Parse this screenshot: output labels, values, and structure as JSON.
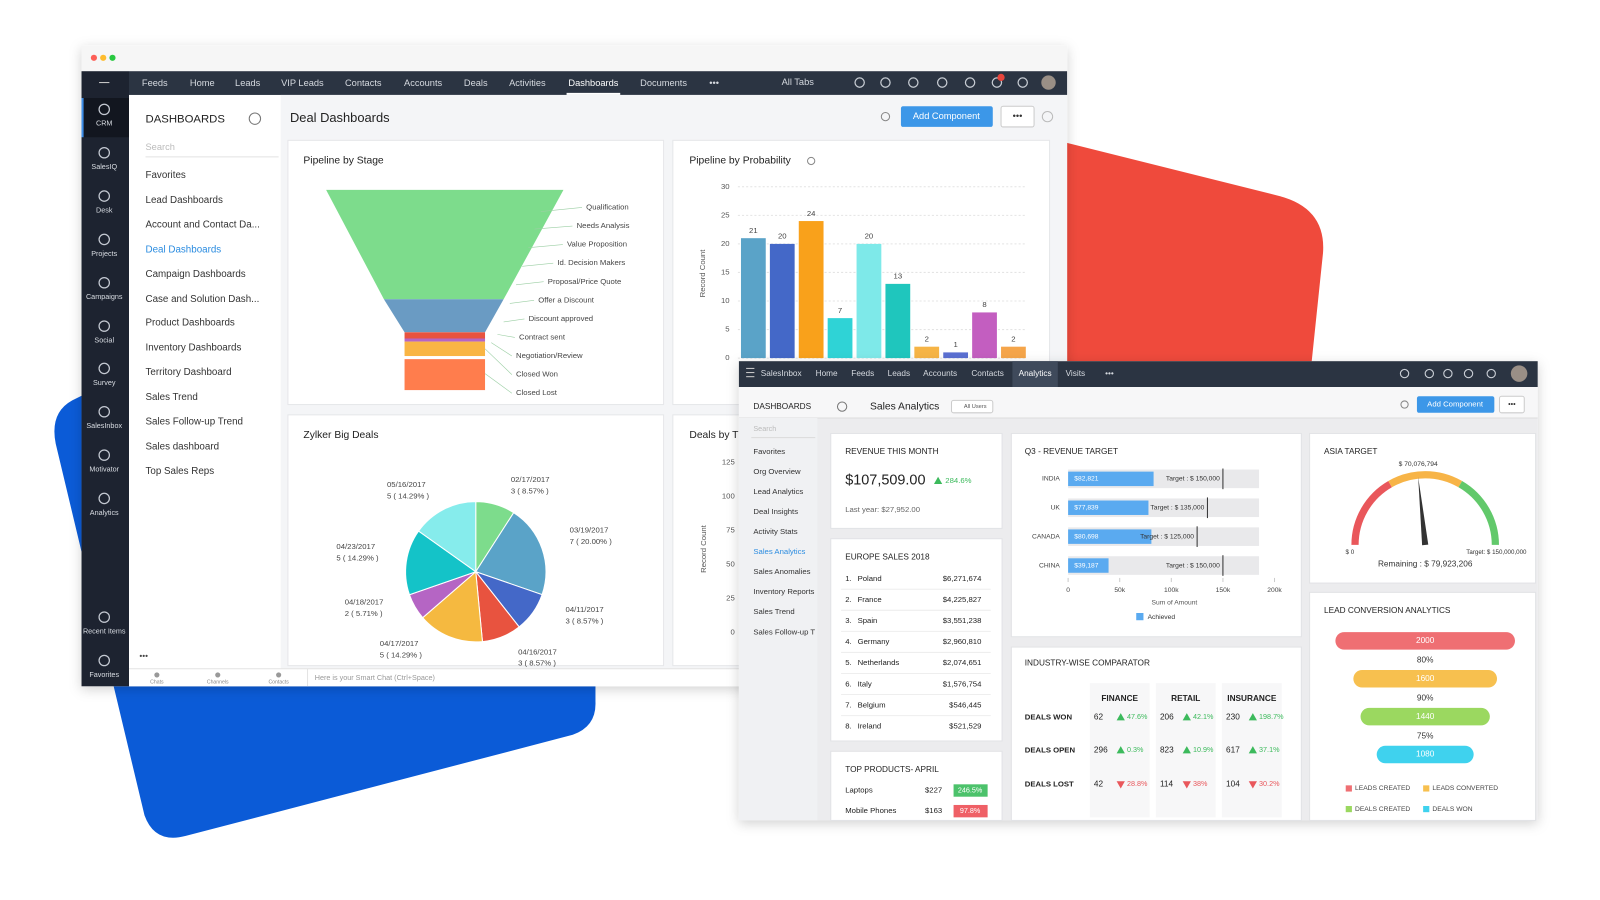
{
  "back_window": {
    "nav": [
      "Feeds",
      "Home",
      "Leads",
      "VIP Leads",
      "Contacts",
      "Accounts",
      "Deals",
      "Activities",
      "Dashboards",
      "Documents",
      "•••"
    ],
    "nav_selected": 8,
    "all_tabs": "All Tabs",
    "apps": [
      "CRM",
      "SalesIQ",
      "Desk",
      "Projects",
      "Campaigns",
      "Social",
      "Survey",
      "SalesInbox",
      "Motivator",
      "Analytics"
    ],
    "bottom_apps": [
      "Recent Items",
      "Favorites"
    ],
    "list_title": "DASHBOARDS",
    "search": "Search",
    "dashboards": [
      "Favorites",
      "Lead Dashboards",
      "Account and Contact Da...",
      "Deal Dashboards",
      "Campaign Dashboards",
      "Case and Solution Dash...",
      "Product Dashboards",
      "Inventory Dashboards",
      "Territory Dashboard",
      "Sales Trend",
      "Sales Follow-up Trend",
      "Sales dashboard",
      "Top Sales Reps"
    ],
    "selected": 3,
    "title": "Deal Dashboards",
    "add_button": "Add Component",
    "more": "•••",
    "pipeline_stage": {
      "title": "Pipeline by Stage",
      "stages": [
        "Qualification",
        "Needs Analysis",
        "Value Proposition",
        "Id. Decision Makers",
        "Proposal/Price Quote",
        "Offer a Discount",
        "Discount approved",
        "Contract sent",
        "Negotiation/Review",
        "Closed Won",
        "Closed Lost"
      ]
    },
    "chat": {
      "tabs": [
        "Chats",
        "Channels",
        "Contacts"
      ],
      "placeholder": "Here is your Smart Chat (Ctrl+Space)"
    }
  },
  "front_window": {
    "nav": [
      "SalesInbox",
      "Home",
      "Feeds",
      "Leads",
      "Accounts",
      "Contacts",
      "Analytics",
      "Visits",
      "•••"
    ],
    "nav_selected": 6,
    "list_title": "DASHBOARDS",
    "title": "Sales Analytics",
    "users": "All Users",
    "add_button": "Add Component",
    "more": "•••",
    "search": "Search",
    "dashboards": [
      "Favorites",
      "Org Overview",
      "Lead Analytics",
      "Deal Insights",
      "Activity Stats",
      "Sales Analytics",
      "Sales Anomalies",
      "Inventory Reports",
      "Sales Trend",
      "Sales Follow-up T"
    ],
    "selected": 5,
    "revenue": {
      "title": "REVENUE THIS MONTH",
      "amount": "$107,509.00",
      "change": "284.6%",
      "last_year": "Last year: $27,952.00"
    },
    "europe": {
      "title": "EUROPE SALES 2018",
      "rows": [
        [
          "1.",
          "Poland",
          "$6,271,674"
        ],
        [
          "2.",
          "France",
          "$4,225,827"
        ],
        [
          "3.",
          "Spain",
          "$3,551,238"
        ],
        [
          "4.",
          "Germany",
          "$2,960,810"
        ],
        [
          "5.",
          "Netherlands",
          "$2,074,651"
        ],
        [
          "6.",
          "Italy",
          "$1,576,754"
        ],
        [
          "7.",
          "Belgium",
          "$546,445"
        ],
        [
          "8.",
          "Ireland",
          "$521,529"
        ]
      ]
    },
    "products": {
      "title": "TOP PRODUCTS- APRIL",
      "rows": [
        {
          "name": "Laptops",
          "amount": "$227",
          "change": "246.5%",
          "up": true
        },
        {
          "name": "Mobile Phones",
          "amount": "$163",
          "change": "97.8%",
          "up": false
        }
      ]
    },
    "industry": {
      "title": "INDUSTRY-WISE COMPARATOR",
      "columns": [
        "FINANCE",
        "RETAIL",
        "INSURANCE"
      ],
      "rows": [
        {
          "label": "DEALS WON",
          "cells": [
            {
              "value": "62",
              "change": "47.6%",
              "up": true
            },
            {
              "value": "206",
              "change": "42.1%",
              "up": true
            },
            {
              "value": "230",
              "change": "198.7%",
              "up": true
            }
          ]
        },
        {
          "label": "DEALS OPEN",
          "cells": [
            {
              "value": "296",
              "change": "0.3%",
              "up": true
            },
            {
              "value": "823",
              "change": "10.9%",
              "up": true
            },
            {
              "value": "617",
              "change": "37.1%",
              "up": true
            }
          ]
        },
        {
          "label": "DEALS LOST",
          "cells": [
            {
              "value": "42",
              "change": "28.8%",
              "up": false
            },
            {
              "value": "114",
              "change": "38%",
              "up": false
            },
            {
              "value": "104",
              "change": "30.2%",
              "up": false
            }
          ]
        }
      ]
    }
  },
  "chart_data": [
    {
      "type": "bar",
      "title": "Pipeline by Probability",
      "ylabel": "Record Count",
      "values": [
        21,
        20,
        24,
        7,
        20,
        13,
        2,
        1,
        8,
        2
      ],
      "colors": [
        "#5aa3c8",
        "#4468c8",
        "#f9a11b",
        "#2fd3d6",
        "#7ee9e9",
        "#1fc6bd",
        "#f6b445",
        "#5a6fd1",
        "#c35ec0",
        "#f5a54a"
      ],
      "ylim": [
        0,
        30
      ],
      "yticks": [
        0,
        5,
        10,
        15,
        20,
        25,
        30
      ],
      "grid": true
    },
    {
      "type": "pie",
      "title": "Zylker Big Deals",
      "categories": [
        "02/17/2017",
        "03/19/2017",
        "04/11/2017",
        "04/16/2017",
        "04/17/2017",
        "04/18/2017",
        "04/23/2017",
        "05/16/2017"
      ],
      "values": [
        8.57,
        20,
        8.57,
        8.57,
        14.29,
        5.71,
        14.29,
        14.29
      ],
      "value_labels": [
        "3 ( 8.57% )",
        "7 ( 20.00% )",
        "3 ( 8.57% )",
        "3 ( 8.57% )",
        "5 ( 14.29% )",
        "2 ( 5.71% )",
        "5 ( 14.29% )",
        "5 ( 14.29% )"
      ],
      "colors": [
        "#7ddc8c",
        "#5aa3c8",
        "#4468c8",
        "#e8533f",
        "#f5b940",
        "#b565c4",
        "#14c3c8",
        "#86ecec"
      ]
    },
    {
      "type": "bar",
      "title": "Deals by T",
      "ylabel": "Record Count",
      "ylim": [
        0,
        125
      ],
      "yticks": [
        0,
        25,
        50,
        75,
        100,
        125
      ],
      "grid": true
    },
    {
      "type": "barh",
      "title": "Q3 - REVENUE TARGET",
      "categories": [
        "INDIA",
        "UK",
        "CANADA",
        "CHINA"
      ],
      "series": [
        {
          "name": "Achieved",
          "color": "#5aaaf0",
          "values": [
            82821,
            77839,
            80698,
            39187
          ],
          "value_labels": [
            "$82,821",
            "$77,839",
            "$80,698",
            "$39,187"
          ]
        }
      ],
      "targets": [
        150000,
        135000,
        125000,
        150000
      ],
      "target_labels": [
        "Target : $ 150,000",
        "Target : $ 135,000",
        "Target : $ 125,000",
        "Target : $ 150,000"
      ],
      "xlim": [
        0,
        200000
      ],
      "xticks": [
        0,
        {
          "value": 50000,
          "label": "50k"
        },
        {
          "value": 100000,
          "label": "100k"
        },
        {
          "value": 150000,
          "label": "150k"
        },
        {
          "value": 200000,
          "label": "200k"
        }
      ],
      "xlabel": "Sum of Amount",
      "legend": "bottom"
    },
    {
      "type": "gauge",
      "title": "ASIA TARGET",
      "value": 70076794,
      "value_label": "$ 70,076,794",
      "ylim": [
        0,
        150000000
      ],
      "min_label": "$ 0",
      "max_label": "Target: $ 150,000,000",
      "remaining": "Remaining : $ 79,923,206",
      "colors": [
        "#e9575b",
        "#f7b447",
        "#62c96b"
      ]
    },
    {
      "type": "funnel",
      "title": "LEAD CONVERSION ANALYTICS",
      "categories": [
        "LEADS CREATED",
        "LEADS CONVERTED",
        "DEALS CREATED",
        "DEALS WON"
      ],
      "values": [
        2000,
        1600,
        1440,
        1080
      ],
      "colors": [
        "#ef6f73",
        "#f7c04f",
        "#9bd860",
        "#3fd2ee"
      ],
      "rates": [
        80,
        90,
        75
      ],
      "rate_labels": [
        "80%",
        "90%",
        "75%"
      ],
      "legend": "bottom"
    }
  ]
}
